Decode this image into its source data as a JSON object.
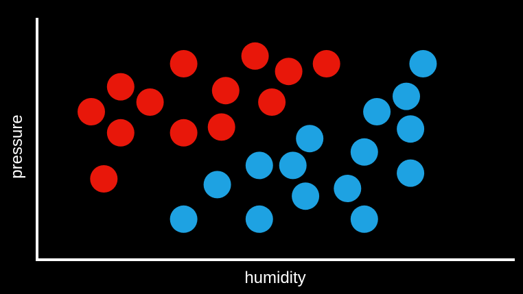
{
  "chart_data": {
    "type": "scatter",
    "title": "",
    "xlabel": "humidity",
    "ylabel": "pressure",
    "ticks": false,
    "grid": false,
    "legend": "none",
    "xlim": [
      0,
      100
    ],
    "ylim": [
      0,
      100
    ],
    "series": [
      {
        "color": "#e8170a",
        "points": [
          {
            "x": 30,
            "y": 90
          },
          {
            "x": 47,
            "y": 94
          },
          {
            "x": 55,
            "y": 86
          },
          {
            "x": 64,
            "y": 90
          },
          {
            "x": 15,
            "y": 78
          },
          {
            "x": 40,
            "y": 76
          },
          {
            "x": 22,
            "y": 70
          },
          {
            "x": 51,
            "y": 70
          },
          {
            "x": 8,
            "y": 65
          },
          {
            "x": 15,
            "y": 54
          },
          {
            "x": 30,
            "y": 54
          },
          {
            "x": 39,
            "y": 57
          },
          {
            "x": 11,
            "y": 30
          }
        ]
      },
      {
        "color": "#1ea2e2",
        "points": [
          {
            "x": 87,
            "y": 90
          },
          {
            "x": 83,
            "y": 73
          },
          {
            "x": 76,
            "y": 65
          },
          {
            "x": 84,
            "y": 56
          },
          {
            "x": 60,
            "y": 51
          },
          {
            "x": 73,
            "y": 44
          },
          {
            "x": 48,
            "y": 37
          },
          {
            "x": 56,
            "y": 37
          },
          {
            "x": 84,
            "y": 33
          },
          {
            "x": 38,
            "y": 27
          },
          {
            "x": 69,
            "y": 25
          },
          {
            "x": 59,
            "y": 21
          },
          {
            "x": 30,
            "y": 9
          },
          {
            "x": 48,
            "y": 9
          },
          {
            "x": 73,
            "y": 9
          }
        ]
      }
    ]
  }
}
